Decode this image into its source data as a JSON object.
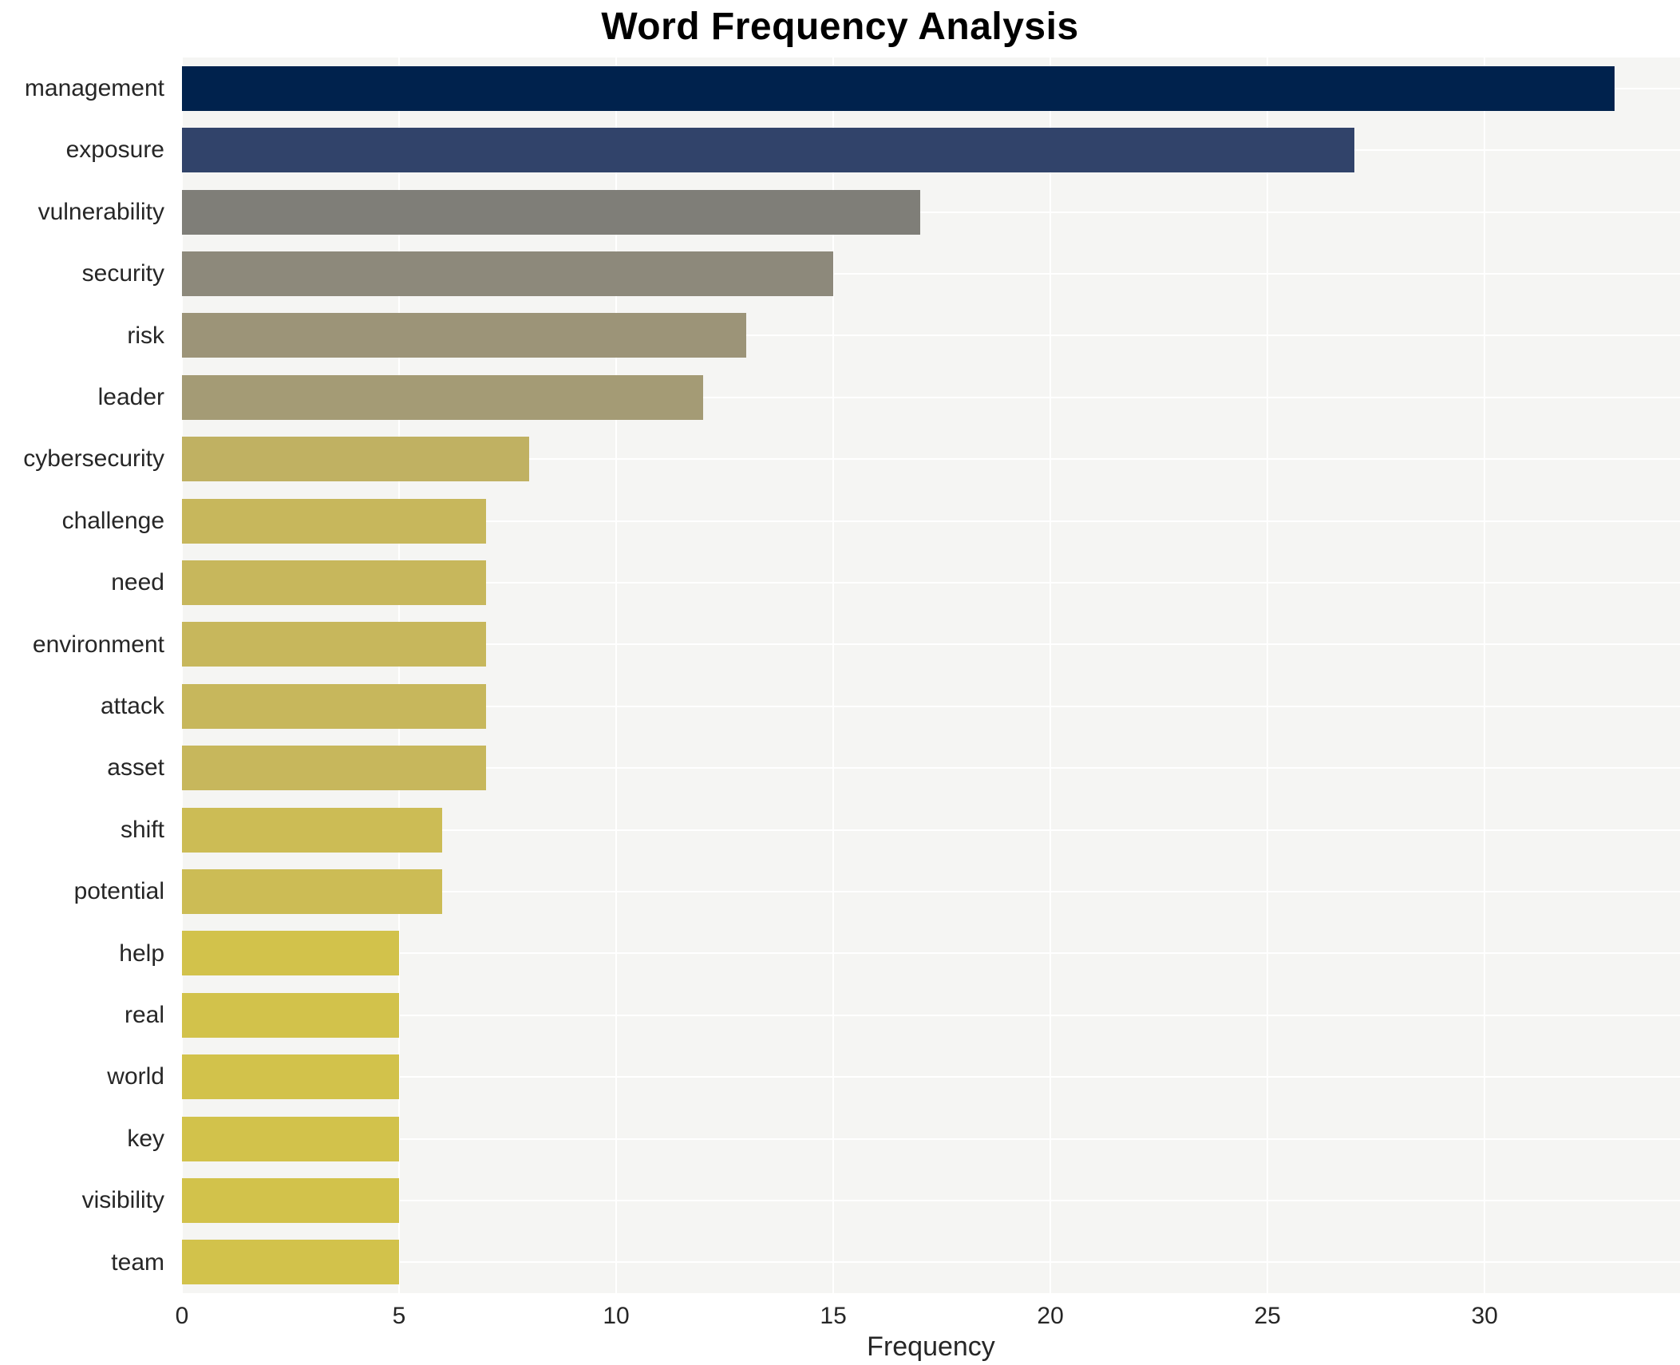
{
  "title": "Word Frequency Analysis",
  "chart_data": {
    "type": "bar",
    "orientation": "horizontal",
    "title": "Word Frequency Analysis",
    "xlabel": "Frequency",
    "ylabel": "",
    "categories": [
      "management",
      "exposure",
      "vulnerability",
      "security",
      "risk",
      "leader",
      "cybersecurity",
      "challenge",
      "need",
      "environment",
      "attack",
      "asset",
      "shift",
      "potential",
      "help",
      "real",
      "world",
      "key",
      "visibility",
      "team"
    ],
    "values": [
      33,
      27,
      17,
      15,
      13,
      12,
      8,
      7,
      7,
      7,
      7,
      7,
      6,
      6,
      5,
      5,
      5,
      5,
      5,
      5
    ],
    "bar_colors": [
      "#00224d",
      "#31436a",
      "#7f7e78",
      "#8d897b",
      "#9c9478",
      "#a49b75",
      "#c0b162",
      "#c7b75c",
      "#c7b75c",
      "#c7b75c",
      "#c7b75c",
      "#c7b75c",
      "#ccbc55",
      "#ccbc55",
      "#d2c24b",
      "#d2c24b",
      "#d2c24b",
      "#d2c24b",
      "#d2c24b",
      "#d2c24b"
    ],
    "x_ticks": [
      0,
      5,
      10,
      15,
      20,
      25,
      30
    ],
    "xlim": [
      0,
      34.5
    ],
    "grid": true,
    "grid_color": "#ffffff",
    "plot_background": "#f5f5f3",
    "page_background": "#ffffff",
    "legend": false
  }
}
